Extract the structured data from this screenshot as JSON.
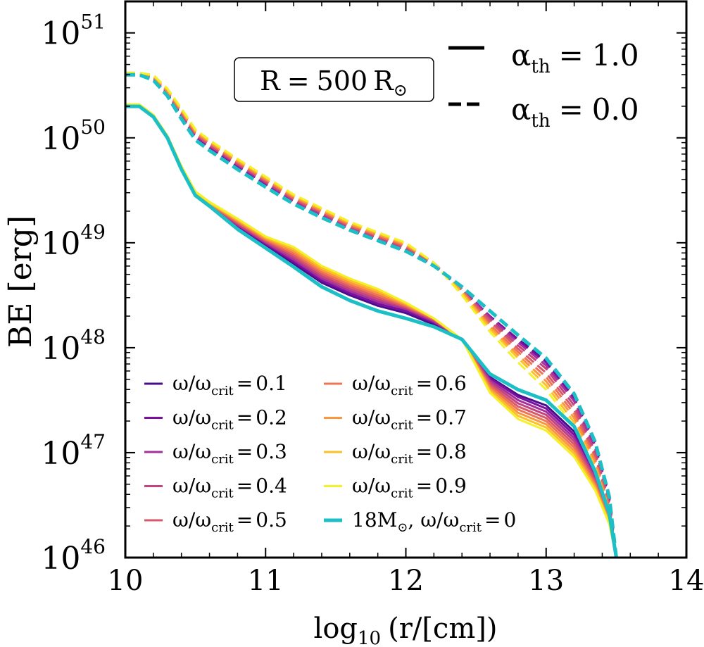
{
  "chart_data": {
    "type": "line",
    "title": "",
    "xlabel_parts": {
      "pre": "log",
      "sub": "10",
      "post": "(r/[cm])"
    },
    "ylabel": "BE [erg]",
    "xlim": [
      10,
      14
    ],
    "ylim_log10": [
      46,
      51.3
    ],
    "xticks": [
      10,
      11,
      12,
      13,
      14
    ],
    "xtick_labels": [
      "10",
      "11",
      "12",
      "13",
      "14"
    ],
    "yticks_log10": [
      46,
      47,
      48,
      49,
      50,
      51
    ],
    "ytick_labels": [
      {
        "base": "10",
        "exp": "46"
      },
      {
        "base": "10",
        "exp": "47"
      },
      {
        "base": "10",
        "exp": "48"
      },
      {
        "base": "10",
        "exp": "49"
      },
      {
        "base": "10",
        "exp": "50"
      },
      {
        "base": "10",
        "exp": "51"
      }
    ],
    "annotation_box": {
      "lhs": "R",
      "eq": "=",
      "value": "500",
      "unit": "R",
      "unit_sub": "⊙"
    },
    "style_legend": [
      {
        "style": "solid",
        "sym": "α",
        "sub": "th",
        "eq": "=",
        "value": "1.0"
      },
      {
        "style": "dashed",
        "sym": "α",
        "sub": "th",
        "eq": "=",
        "value": "0.0"
      }
    ],
    "series_legend": [
      {
        "color": "#4b0c8c",
        "name": "ω/ω",
        "sub": "crit",
        "eq": "=",
        "val": "0.1",
        "row": 0,
        "col": 0
      },
      {
        "color": "#7a0fa0",
        "name": "ω/ω",
        "sub": "crit",
        "eq": "=",
        "val": "0.2",
        "row": 1,
        "col": 0
      },
      {
        "color": "#a4309e",
        "name": "ω/ω",
        "sub": "crit",
        "eq": "=",
        "val": "0.3",
        "row": 2,
        "col": 0
      },
      {
        "color": "#c2447f",
        "name": "ω/ω",
        "sub": "crit",
        "eq": "=",
        "val": "0.4",
        "row": 3,
        "col": 0
      },
      {
        "color": "#d9596a",
        "name": "ω/ω",
        "sub": "crit",
        "eq": "=",
        "val": "0.5",
        "row": 4,
        "col": 0
      },
      {
        "color": "#ee7455",
        "name": "ω/ω",
        "sub": "crit",
        "eq": "=",
        "val": "0.6",
        "row": 0,
        "col": 1
      },
      {
        "color": "#fb973c",
        "name": "ω/ω",
        "sub": "crit",
        "eq": "=",
        "val": "0.7",
        "row": 1,
        "col": 1
      },
      {
        "color": "#fcc028",
        "name": "ω/ω",
        "sub": "crit",
        "eq": "=",
        "val": "0.8",
        "row": 2,
        "col": 1
      },
      {
        "color": "#f3f12a",
        "name": "ω/ω",
        "sub": "crit",
        "eq": "=",
        "val": "0.9",
        "row": 3,
        "col": 1
      },
      {
        "color": "#1cbfc5",
        "pre": "18M",
        "pre_sub": "⊙",
        "sep": ",",
        "name": "ω/ω",
        "sub": "crit",
        "eq": "=",
        "val": "0",
        "row": 4,
        "col": 1
      }
    ],
    "x": [
      10.0,
      10.1,
      10.2,
      10.3,
      10.4,
      10.5,
      10.6,
      10.8,
      11.0,
      11.2,
      11.4,
      11.6,
      11.8,
      12.0,
      12.2,
      12.4,
      12.6,
      12.8,
      13.0,
      13.2,
      13.35,
      13.45,
      13.5
    ],
    "series": [
      {
        "name": "ω/ω_crit = 0.1",
        "color": "#4b0c8c",
        "style": "dashed",
        "width": 3,
        "log10_be": [
          50.6,
          50.6,
          50.56,
          50.42,
          50.2,
          50.0,
          49.9,
          49.72,
          49.55,
          49.38,
          49.25,
          49.12,
          49.02,
          48.92,
          48.78,
          48.55,
          48.3,
          48.08,
          47.88,
          47.55,
          47.1,
          46.6,
          46.0
        ]
      },
      {
        "name": "ω/ω_crit = 0.2",
        "color": "#7a0fa0",
        "style": "dashed",
        "width": 3,
        "log10_be": [
          50.6,
          50.6,
          50.56,
          50.42,
          50.21,
          50.01,
          49.91,
          49.73,
          49.56,
          49.39,
          49.26,
          49.13,
          49.03,
          48.93,
          48.79,
          48.56,
          48.3,
          48.07,
          47.86,
          47.52,
          47.07,
          46.57,
          46.0
        ]
      },
      {
        "name": "ω/ω_crit = 0.3",
        "color": "#a4309e",
        "style": "dashed",
        "width": 3,
        "log10_be": [
          50.6,
          50.6,
          50.57,
          50.43,
          50.22,
          50.02,
          49.92,
          49.74,
          49.57,
          49.4,
          49.27,
          49.14,
          49.04,
          48.94,
          48.8,
          48.56,
          48.29,
          48.05,
          47.83,
          47.49,
          47.04,
          46.55,
          46.0
        ]
      },
      {
        "name": "ω/ω_crit = 0.4",
        "color": "#c2447f",
        "style": "dashed",
        "width": 3,
        "log10_be": [
          50.61,
          50.61,
          50.57,
          50.43,
          50.23,
          50.03,
          49.93,
          49.75,
          49.58,
          49.41,
          49.28,
          49.15,
          49.05,
          48.95,
          48.8,
          48.55,
          48.27,
          48.02,
          47.8,
          47.45,
          47.0,
          46.52,
          46.0
        ]
      },
      {
        "name": "ω/ω_crit = 0.5",
        "color": "#d9596a",
        "style": "dashed",
        "width": 3,
        "log10_be": [
          50.61,
          50.61,
          50.58,
          50.44,
          50.24,
          50.04,
          49.94,
          49.76,
          49.59,
          49.42,
          49.29,
          49.16,
          49.06,
          48.96,
          48.81,
          48.55,
          48.25,
          47.99,
          47.76,
          47.41,
          46.96,
          46.5,
          46.0
        ]
      },
      {
        "name": "ω/ω_crit = 0.6",
        "color": "#ee7455",
        "style": "dashed",
        "width": 3,
        "log10_be": [
          50.61,
          50.61,
          50.58,
          50.44,
          50.25,
          50.05,
          49.95,
          49.77,
          49.6,
          49.43,
          49.3,
          49.17,
          49.07,
          48.97,
          48.81,
          48.54,
          48.22,
          47.96,
          47.72,
          47.37,
          46.93,
          46.47,
          46.0
        ]
      },
      {
        "name": "ω/ω_crit = 0.7",
        "color": "#fb973c",
        "style": "dashed",
        "width": 3,
        "log10_be": [
          50.62,
          50.62,
          50.59,
          50.45,
          50.26,
          50.06,
          49.96,
          49.78,
          49.61,
          49.44,
          49.31,
          49.18,
          49.08,
          48.98,
          48.81,
          48.53,
          48.2,
          47.93,
          47.68,
          47.33,
          46.9,
          46.45,
          46.0
        ]
      },
      {
        "name": "ω/ω_crit = 0.8",
        "color": "#fcc028",
        "style": "dashed",
        "width": 3,
        "log10_be": [
          50.62,
          50.62,
          50.59,
          50.46,
          50.27,
          50.07,
          49.97,
          49.79,
          49.62,
          49.45,
          49.32,
          49.19,
          49.09,
          48.99,
          48.81,
          48.52,
          48.18,
          47.9,
          47.64,
          47.29,
          46.87,
          46.43,
          46.0
        ]
      },
      {
        "name": "ω/ω_crit = 0.9",
        "color": "#f3f12a",
        "style": "dashed",
        "width": 3,
        "log10_be": [
          50.62,
          50.62,
          50.6,
          50.47,
          50.28,
          50.08,
          49.98,
          49.8,
          49.63,
          49.46,
          49.33,
          49.2,
          49.1,
          49.0,
          48.81,
          48.5,
          48.15,
          47.86,
          47.6,
          47.25,
          46.84,
          46.41,
          46.0
        ]
      },
      {
        "name": "18M⊙, ω/ω_crit = 0 (α_th = 0.0)",
        "color": "#1cbfc5",
        "style": "dashed",
        "width": 5,
        "log10_be": [
          50.6,
          50.6,
          50.55,
          50.4,
          50.18,
          49.98,
          49.88,
          49.7,
          49.53,
          49.37,
          49.24,
          49.12,
          49.02,
          48.92,
          48.78,
          48.58,
          48.35,
          48.12,
          47.9,
          47.56,
          47.1,
          46.58,
          46.0
        ]
      },
      {
        "name": "ω/ω_crit = 0.1",
        "color": "#4b0c8c",
        "style": "solid",
        "width": 3,
        "log10_be": [
          50.3,
          50.3,
          50.2,
          50.0,
          49.7,
          49.45,
          49.35,
          49.15,
          48.98,
          48.8,
          48.62,
          48.5,
          48.4,
          48.33,
          48.22,
          48.08,
          47.72,
          47.55,
          47.45,
          47.2,
          46.8,
          46.4,
          46.0
        ]
      },
      {
        "name": "ω/ω_crit = 0.2",
        "color": "#7a0fa0",
        "style": "solid",
        "width": 3,
        "log10_be": [
          50.3,
          50.3,
          50.2,
          50.0,
          49.7,
          49.45,
          49.35,
          49.16,
          48.99,
          48.82,
          48.64,
          48.52,
          48.42,
          48.35,
          48.24,
          48.08,
          47.71,
          47.53,
          47.42,
          47.17,
          46.78,
          46.39,
          46.0
        ]
      },
      {
        "name": "ω/ω_crit = 0.3",
        "color": "#a4309e",
        "style": "solid",
        "width": 3,
        "log10_be": [
          50.3,
          50.3,
          50.2,
          50.0,
          49.7,
          49.46,
          49.36,
          49.17,
          49.0,
          48.84,
          48.66,
          48.54,
          48.44,
          48.37,
          48.25,
          48.08,
          47.69,
          47.5,
          47.39,
          47.14,
          46.76,
          46.38,
          46.0
        ]
      },
      {
        "name": "ω/ω_crit = 0.4",
        "color": "#c2447f",
        "style": "solid",
        "width": 3,
        "log10_be": [
          50.3,
          50.3,
          50.2,
          50.0,
          49.71,
          49.46,
          49.36,
          49.18,
          49.01,
          48.86,
          48.68,
          48.56,
          48.46,
          48.38,
          48.26,
          48.08,
          47.67,
          47.47,
          47.36,
          47.11,
          46.74,
          46.37,
          46.0
        ]
      },
      {
        "name": "ω/ω_crit = 0.5",
        "color": "#d9596a",
        "style": "solid",
        "width": 3,
        "log10_be": [
          50.3,
          50.3,
          50.21,
          50.01,
          49.71,
          49.47,
          49.37,
          49.19,
          49.02,
          48.88,
          48.7,
          48.58,
          48.48,
          48.39,
          48.27,
          48.08,
          47.65,
          47.44,
          47.33,
          47.08,
          46.72,
          46.36,
          46.0
        ]
      },
      {
        "name": "ω/ω_crit = 0.6",
        "color": "#ee7455",
        "style": "solid",
        "width": 3,
        "log10_be": [
          50.31,
          50.31,
          50.21,
          50.01,
          49.72,
          49.47,
          49.37,
          49.2,
          49.03,
          48.9,
          48.72,
          48.6,
          48.5,
          48.4,
          48.27,
          48.08,
          47.63,
          47.41,
          47.3,
          47.05,
          46.7,
          46.35,
          46.0
        ]
      },
      {
        "name": "ω/ω_crit = 0.7",
        "color": "#fb973c",
        "style": "solid",
        "width": 3,
        "log10_be": [
          50.31,
          50.31,
          50.21,
          50.01,
          49.72,
          49.48,
          49.38,
          49.21,
          49.04,
          48.92,
          48.74,
          48.62,
          48.52,
          48.41,
          48.28,
          48.08,
          47.61,
          47.38,
          47.27,
          47.02,
          46.68,
          46.34,
          46.0
        ]
      },
      {
        "name": "ω/ω_crit = 0.8",
        "color": "#fcc028",
        "style": "solid",
        "width": 3,
        "log10_be": [
          50.31,
          50.31,
          50.22,
          50.02,
          49.73,
          49.48,
          49.38,
          49.22,
          49.05,
          48.94,
          48.76,
          48.64,
          48.54,
          48.42,
          48.28,
          48.08,
          47.59,
          47.35,
          47.24,
          46.99,
          46.66,
          46.33,
          46.0
        ]
      },
      {
        "name": "ω/ω_crit = 0.9",
        "color": "#f3f12a",
        "style": "solid",
        "width": 3,
        "log10_be": [
          50.32,
          50.32,
          50.22,
          50.02,
          49.73,
          49.49,
          49.39,
          49.23,
          49.06,
          48.96,
          48.78,
          48.66,
          48.56,
          48.43,
          48.28,
          48.08,
          47.57,
          47.32,
          47.21,
          46.96,
          46.64,
          46.32,
          46.0
        ]
      },
      {
        "name": "18M⊙, ω/ω_crit = 0 (α_th = 1.0)",
        "color": "#1cbfc5",
        "style": "solid",
        "width": 5,
        "log10_be": [
          50.3,
          50.3,
          50.2,
          50.0,
          49.7,
          49.45,
          49.35,
          49.13,
          48.95,
          48.77,
          48.58,
          48.45,
          48.35,
          48.28,
          48.2,
          48.08,
          47.75,
          47.6,
          47.5,
          47.25,
          46.82,
          46.42,
          46.0
        ]
      }
    ]
  }
}
